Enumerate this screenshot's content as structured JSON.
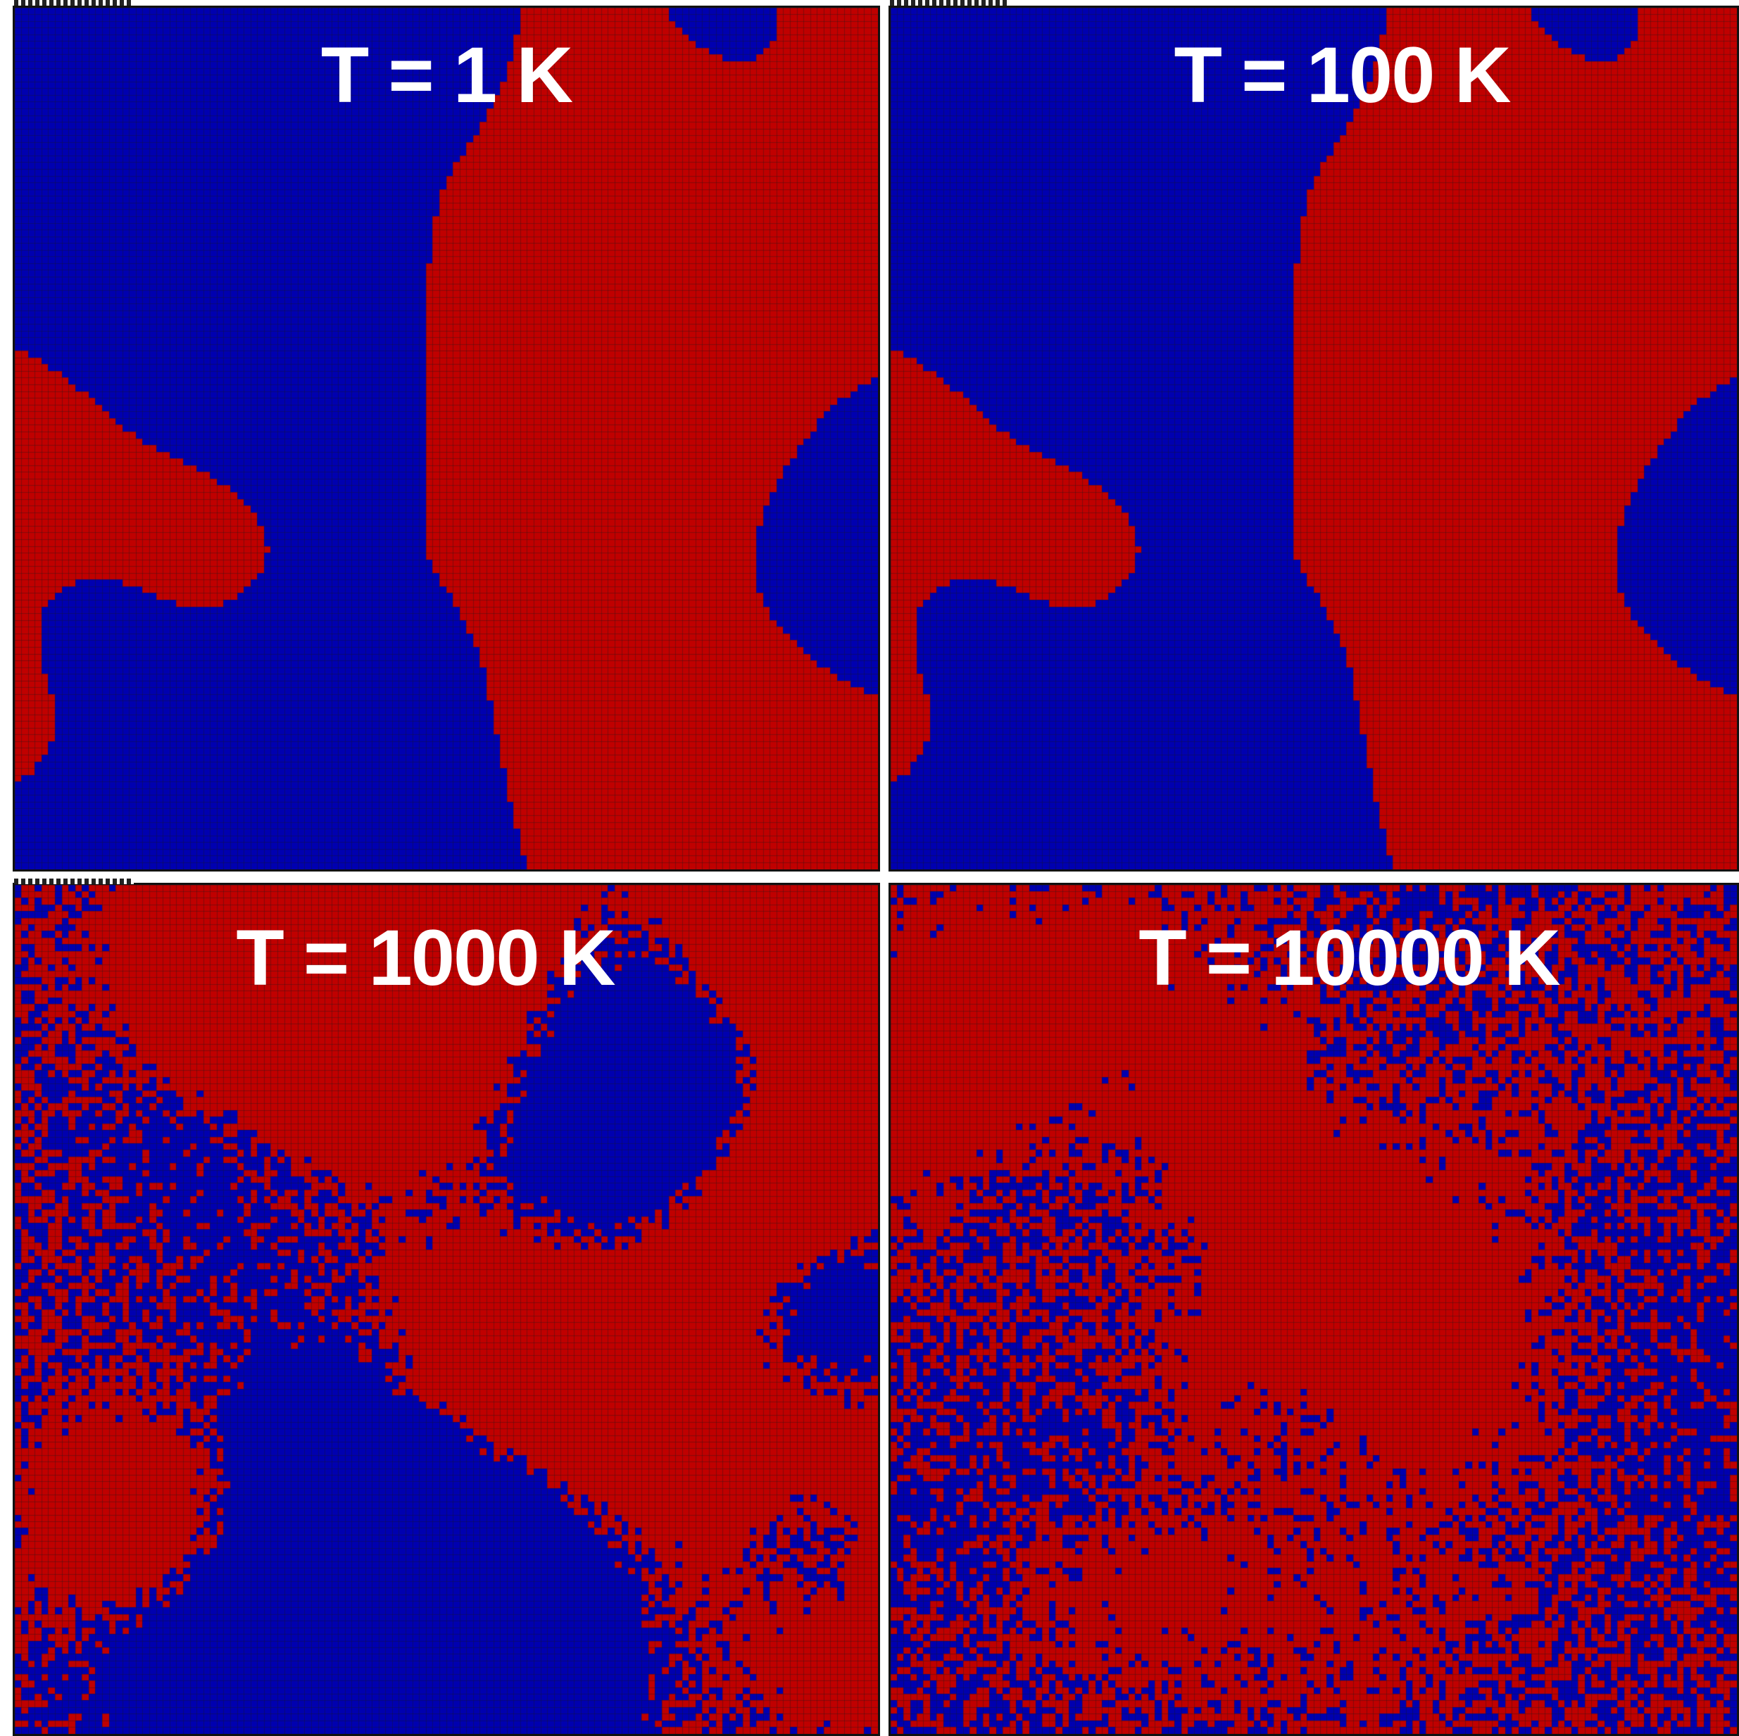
{
  "figure": {
    "colors": {
      "phase_a": "#c00000",
      "phase_b": "#0000b0",
      "grid_line": "#1a1a1a",
      "label": "#ffffff"
    },
    "panels": [
      {
        "id": "t1",
        "label": "T = 1 K",
        "temperature_K": 1,
        "pattern": "coarse"
      },
      {
        "id": "t100",
        "label": "T = 100 K",
        "temperature_K": 100,
        "pattern": "coarse"
      },
      {
        "id": "t1000",
        "label": "T = 1000 K",
        "temperature_K": 1000,
        "pattern": "clustered"
      },
      {
        "id": "t10000",
        "label": "T = 10000 K",
        "temperature_K": 10000,
        "pattern": "random"
      }
    ]
  }
}
